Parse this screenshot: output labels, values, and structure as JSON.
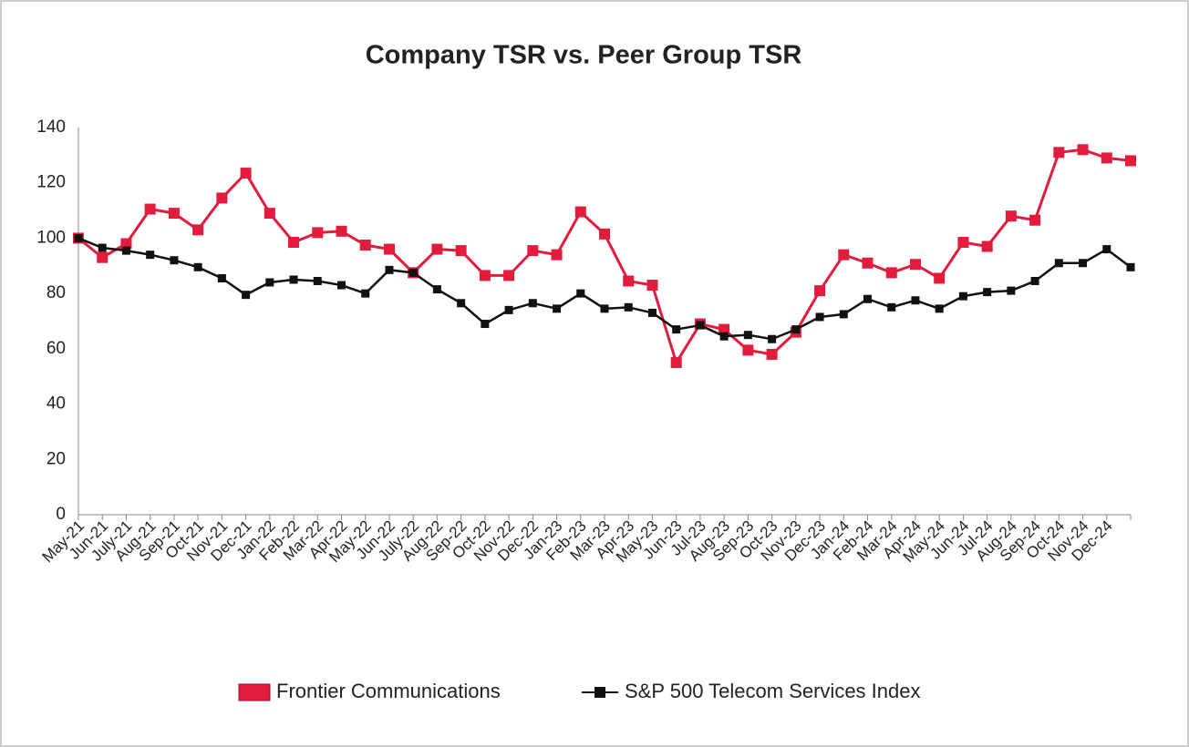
{
  "chart_data": {
    "type": "line",
    "title": "Company TSR vs. Peer Group TSR",
    "categories": [
      "May-21",
      "Jun-21",
      "July-21",
      "Aug-21",
      "Sep-21",
      "Oct-21",
      "Nov-21",
      "Dec-21",
      "Jan-22",
      "Feb-22",
      "Mar-22",
      "Apr-22",
      "May-22",
      "Jun-22",
      "July-22",
      "Aug-22",
      "Sep-22",
      "Oct-22",
      "Nov-22",
      "Dec-22",
      "Jan-23",
      "Feb-23",
      "Mar-23",
      "Apr-23",
      "May-23",
      "Jun-23",
      "Jul-23",
      "Aug-23",
      "Sep-23",
      "Oct-23",
      "Nov-23",
      "Dec-23",
      "Jan-24",
      "Feb-24",
      "Mar-24",
      "Apr-24",
      "May-24",
      "Jun-24",
      "Jul-24",
      "Aug-24",
      "Sep-24",
      "Oct-24",
      "Nov-24",
      "Dec-24",
      null
    ],
    "series": [
      {
        "name": "Frontier Communications",
        "color": "#e31b3c",
        "values": [
          100,
          93,
          98,
          110.5,
          109,
          103,
          114.5,
          123.5,
          109,
          98.5,
          102,
          102.5,
          97.5,
          96,
          87.5,
          96,
          95.5,
          86.5,
          86.5,
          95.5,
          94,
          109.5,
          101.5,
          84.5,
          83,
          55,
          69,
          67,
          59.5,
          58,
          66,
          81,
          94,
          91,
          87.5,
          90.5,
          85.5,
          98.5,
          97,
          108,
          106.5,
          131,
          132,
          129,
          128
        ]
      },
      {
        "name": "S&P 500 Telecom Services Index",
        "color": "#111111",
        "values": [
          100,
          96.5,
          95.5,
          94,
          92,
          89.5,
          85.5,
          79.5,
          84,
          85,
          84.5,
          83,
          80,
          88.5,
          87.5,
          81.5,
          76.5,
          69,
          74,
          76.5,
          74.5,
          80,
          74.5,
          75,
          73,
          67,
          68.5,
          64.5,
          65,
          63.5,
          67,
          71.5,
          72.5,
          78,
          75,
          77.5,
          74.5,
          79,
          80.5,
          81,
          84.5,
          91,
          91,
          96,
          89.5
        ]
      }
    ],
    "ylim": [
      0,
      140
    ],
    "yticks": [
      0,
      20,
      40,
      60,
      80,
      100,
      120,
      140
    ],
    "grid": false,
    "legend": "bottom"
  }
}
